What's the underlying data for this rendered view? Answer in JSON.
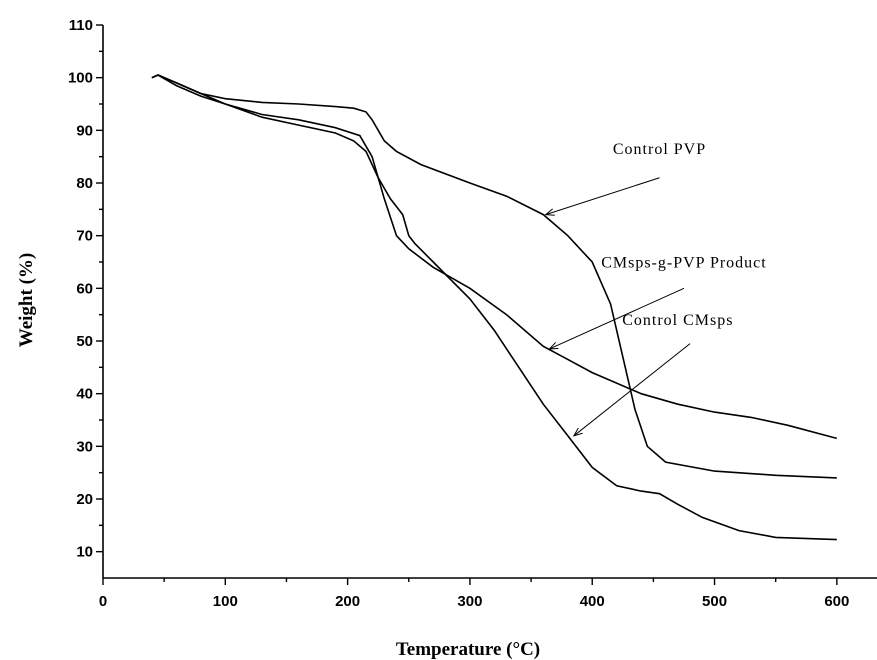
{
  "chart_data": {
    "type": "line",
    "xlabel": "Temperature (°C)",
    "ylabel": "Weight (%)",
    "xlim": [
      0,
      650
    ],
    "ylim": [
      5,
      110
    ],
    "xticks": [
      0,
      100,
      200,
      300,
      400,
      500,
      600
    ],
    "yticks": [
      10,
      20,
      30,
      40,
      50,
      60,
      70,
      80,
      90,
      100,
      110
    ],
    "grid": false,
    "line_color": "#000000",
    "series": [
      {
        "x": [
          40,
          45,
          60,
          80,
          100,
          130,
          160,
          190,
          205,
          215,
          220,
          225,
          230,
          240,
          260,
          300,
          330,
          360,
          380,
          400,
          415,
          425,
          435,
          445,
          460,
          500,
          550,
          600
        ],
        "y": [
          100,
          100.5,
          99,
          97,
          96,
          95.3,
          95,
          94.5,
          94.2,
          93.5,
          92,
          90,
          88,
          86,
          83.5,
          80,
          77.5,
          74,
          70,
          65,
          57,
          47,
          37,
          30,
          27,
          25.3,
          24.5,
          24
        ]
      },
      {
        "x": [
          40,
          45,
          60,
          80,
          100,
          130,
          160,
          190,
          210,
          220,
          230,
          240,
          250,
          270,
          300,
          330,
          360,
          380,
          400,
          440,
          470,
          500,
          530,
          560,
          600
        ],
        "y": [
          100,
          100.5,
          99,
          97,
          95,
          93,
          92,
          90.5,
          89,
          85,
          77,
          70,
          67.5,
          64,
          60,
          55,
          49,
          46.5,
          44,
          40,
          38,
          36.5,
          35.5,
          34,
          31.5
        ]
      },
      {
        "x": [
          40,
          45,
          60,
          80,
          100,
          130,
          160,
          190,
          205,
          215,
          225,
          235,
          245,
          250,
          255,
          270,
          300,
          320,
          340,
          360,
          380,
          400,
          420,
          440,
          455,
          470,
          490,
          520,
          550,
          600
        ],
        "y": [
          100,
          100.5,
          98.5,
          96.5,
          95,
          92.5,
          91,
          89.5,
          88,
          86,
          81,
          77,
          74,
          70,
          68.5,
          65,
          58,
          52,
          45,
          38,
          32,
          26,
          22.5,
          21.5,
          21,
          19,
          16.5,
          14,
          12.7,
          12.3
        ]
      }
    ],
    "annotations": [
      {
        "text": "Control PVP",
        "text_at": [
          455,
          85.5
        ],
        "arrow_from": [
          455,
          81
        ],
        "arrow_to": [
          362,
          74
        ]
      },
      {
        "text": "CMsps-g-PVP Product",
        "text_at": [
          475,
          64
        ],
        "arrow_from": [
          475,
          60
        ],
        "arrow_to": [
          365,
          48.5
        ]
      },
      {
        "text": "Control CMsps",
        "text_at": [
          470,
          53
        ],
        "arrow_from": [
          480,
          49.5
        ],
        "arrow_to": [
          385,
          32
        ]
      }
    ]
  }
}
